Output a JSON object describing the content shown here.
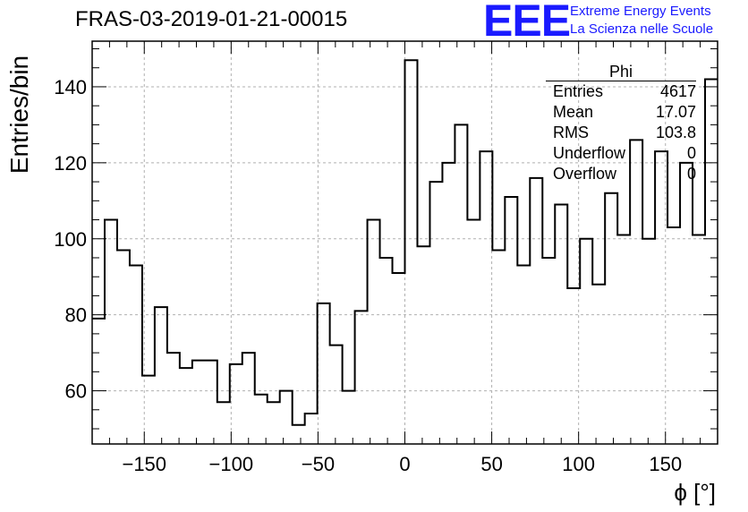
{
  "header": {
    "title": "FRAS-03-2019-01-21-00015",
    "logo_text": "EEE",
    "brand_line1": "Extreme Energy Events",
    "brand_line2": "La Scienza nelle Scuole"
  },
  "stats": {
    "title": "Phi",
    "rows": [
      {
        "label": "Entries",
        "value": "4617"
      },
      {
        "label": "Mean",
        "value": "17.07"
      },
      {
        "label": "RMS",
        "value": "103.8"
      },
      {
        "label": "Underflow",
        "value": "0"
      },
      {
        "label": "Overflow",
        "value": "0"
      }
    ]
  },
  "chart_data": {
    "type": "histogram",
    "title": "FRAS-03-2019-01-21-00015",
    "xlabel": "ϕ [°]",
    "ylabel": "Entries/bin",
    "xlim": [
      -180,
      180
    ],
    "ylim": [
      46,
      152
    ],
    "grid": true,
    "bin_width": 7.2,
    "bin_edges_start": -180,
    "values": [
      79,
      105,
      97,
      93,
      64,
      82,
      70,
      66,
      68,
      68,
      57,
      67,
      70,
      59,
      57,
      60,
      51,
      54,
      83,
      72,
      60,
      81,
      105,
      95,
      91,
      147,
      98,
      115,
      120,
      130,
      105,
      123,
      97,
      111,
      93,
      116,
      95,
      109,
      87,
      100,
      88,
      112,
      101,
      126,
      100,
      123,
      103,
      120,
      101,
      142
    ],
    "x_ticks": [
      -150,
      -100,
      -50,
      0,
      50,
      100,
      150
    ],
    "x_tick_labels": [
      "−150",
      "−100",
      "−50",
      "0",
      "50",
      "100",
      "150"
    ],
    "y_ticks": [
      60,
      80,
      100,
      120,
      140
    ],
    "y_tick_labels": [
      "60",
      "80",
      "100",
      "120",
      "140"
    ]
  }
}
